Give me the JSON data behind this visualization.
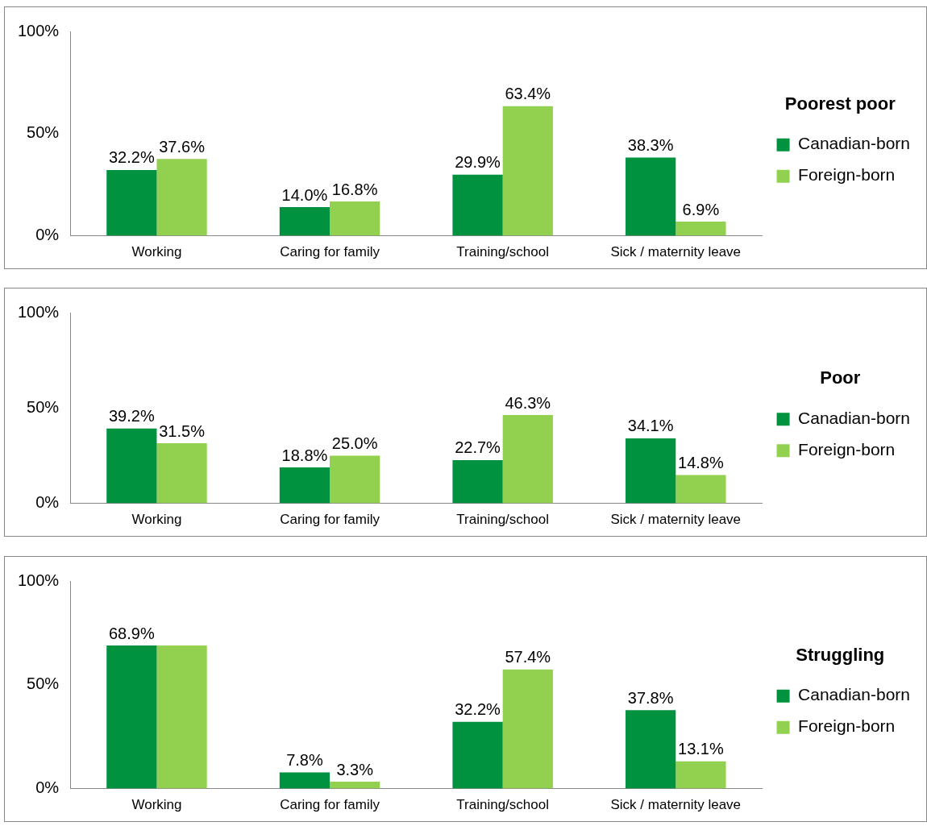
{
  "chart_data": [
    {
      "type": "bar",
      "legend_title": "Poorest poor",
      "categories": [
        "Working",
        "Caring for family",
        "Training/school",
        "Sick / maternity leave"
      ],
      "series": [
        {
          "name": "Canadian-born",
          "color": "#00923f",
          "values": [
            32.2,
            14.0,
            29.9,
            38.3
          ],
          "value_labels": [
            "32.2%",
            "14.0%",
            "29.9%",
            "38.3%"
          ]
        },
        {
          "name": "Foreign-born",
          "color": "#92d050",
          "values": [
            37.6,
            16.8,
            63.4,
            6.9
          ],
          "value_labels": [
            "37.6%",
            "16.8%",
            "63.4%",
            "6.9%"
          ]
        }
      ],
      "ylim": [
        0,
        100
      ],
      "yticks": [
        {
          "value": 0,
          "label": "0%"
        },
        {
          "value": 50,
          "label": "50%"
        },
        {
          "value": 100,
          "label": "100%"
        }
      ],
      "grid": false,
      "legend": "right"
    },
    {
      "type": "bar",
      "legend_title": "Poor",
      "categories": [
        "Working",
        "Caring for family",
        "Training/school",
        "Sick / maternity leave"
      ],
      "series": [
        {
          "name": "Canadian-born",
          "color": "#00923f",
          "values": [
            39.2,
            18.8,
            22.7,
            34.1
          ],
          "value_labels": [
            "39.2%",
            "18.8%",
            "22.7%",
            "34.1%"
          ]
        },
        {
          "name": "Foreign-born",
          "color": "#92d050",
          "values": [
            31.5,
            25.0,
            46.3,
            14.8
          ],
          "value_labels": [
            "31.5%",
            "25.0%",
            "46.3%",
            "14.8%"
          ]
        }
      ],
      "ylim": [
        0,
        100
      ],
      "yticks": [
        {
          "value": 0,
          "label": "0%"
        },
        {
          "value": 50,
          "label": "50%"
        },
        {
          "value": 100,
          "label": "100%"
        }
      ],
      "grid": false,
      "legend": "right"
    },
    {
      "type": "bar",
      "legend_title": "Struggling",
      "categories": [
        "Working",
        "Caring for family",
        "Training/school",
        "Sick / maternity leave"
      ],
      "series": [
        {
          "name": "Canadian-born",
          "color": "#00923f",
          "values": [
            68.9,
            7.8,
            32.2,
            37.8
          ],
          "value_labels": [
            "68.9%",
            "7.8%",
            "32.2%",
            "37.8%"
          ]
        },
        {
          "name": "Foreign-born",
          "color": "#92d050",
          "values": [
            68.9,
            3.3,
            57.4,
            13.1
          ],
          "value_labels": [
            null,
            "3.3%",
            "57.4%",
            "13.1%"
          ]
        }
      ],
      "ylim": [
        0,
        100
      ],
      "yticks": [
        {
          "value": 0,
          "label": "0%"
        },
        {
          "value": 50,
          "label": "50%"
        },
        {
          "value": 100,
          "label": "100%"
        }
      ],
      "grid": false,
      "legend": "right"
    }
  ]
}
